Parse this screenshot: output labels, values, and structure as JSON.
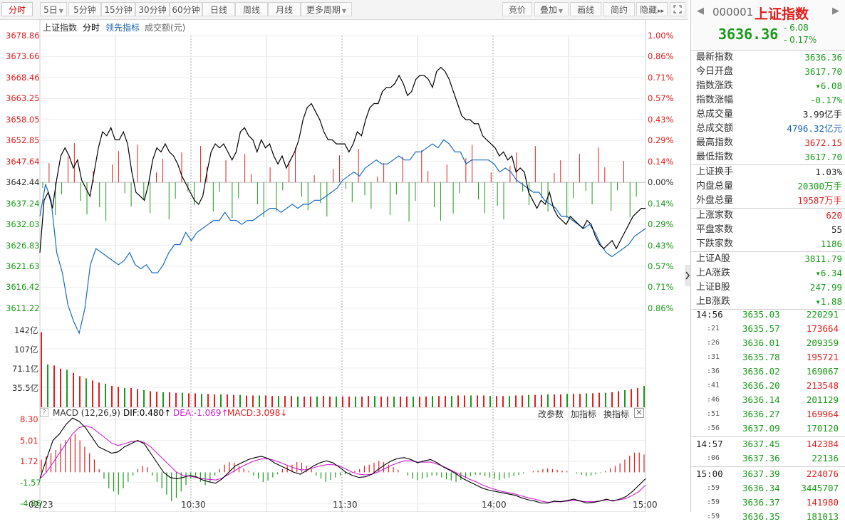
{
  "toolbar": {
    "periods": [
      "分时",
      "5日",
      "1分钟",
      "5分钟",
      "15分钟",
      "30分钟",
      "60分钟",
      "日线",
      "周线",
      "月线",
      "更多周期"
    ],
    "active": "分时",
    "right_buttons": [
      "竞价",
      "叠加",
      "画线",
      "简约",
      "隐藏"
    ],
    "arrow_label": "▸▸"
  },
  "chart": {
    "legend": {
      "index": "上证指数",
      "mode": "分时",
      "leading": "领先指标",
      "amount": "成交额(元)"
    },
    "price_axis": [
      "3678.86",
      "3673.66",
      "3668.46",
      "3663.25",
      "3658.05",
      "3652.85",
      "3647.64",
      "3642.44",
      "3637.24",
      "3632.03",
      "3626.83",
      "3621.63",
      "3616.42",
      "3611.22"
    ],
    "pct_axis": [
      "1.00%",
      "0.86%",
      "0.71%",
      "0.57%",
      "0.43%",
      "0.29%",
      "0.14%",
      "0.00%",
      "0.14%",
      "0.29%",
      "0.43%",
      "0.57%",
      "0.71%",
      "0.86%"
    ],
    "vol_axis": [
      "142亿",
      "107亿",
      "71.1亿",
      "35.5亿"
    ],
    "macd_header": {
      "title": "MACD (12,26,9)",
      "dif": "DIF:0.480↑",
      "dea": "DEA:-1.069↑",
      "macd": "MACD:3.098↓",
      "links": [
        "改参数",
        "加指标",
        "换指标"
      ]
    },
    "macd_axis": [
      "8.30",
      "5.01",
      "1.72",
      "-1.57",
      "-4.86"
    ],
    "time_axis": [
      "02/23",
      "10:30",
      "11:30",
      "14:00",
      "15:00"
    ]
  },
  "colors": {
    "up": "#e02020",
    "down": "#1a9a1a",
    "price_line": "#000000",
    "lead_line": "#1a6cc0",
    "dea": "#d020d0"
  },
  "series": {
    "price": [
      3625,
      3638,
      3640,
      3636,
      3643,
      3649,
      3651,
      3649,
      3646,
      3648,
      3643,
      3641,
      3639,
      3645,
      3651,
      3655,
      3654,
      3656,
      3653,
      3653,
      3655,
      3652,
      3645,
      3640,
      3639,
      3638,
      3642,
      3648,
      3651,
      3650,
      3652,
      3650,
      3649,
      3647,
      3644,
      3642,
      3640,
      3638,
      3637,
      3639,
      3645,
      3650,
      3652,
      3651,
      3652,
      3650,
      3648,
      3650,
      3655,
      3656,
      3654,
      3653,
      3650,
      3653,
      3651,
      3652,
      3649,
      3647,
      3649,
      3646,
      3648,
      3650,
      3653,
      3658,
      3661,
      3662,
      3660,
      3658,
      3655,
      3653,
      3653,
      3652,
      3652,
      3652,
      3650,
      3652,
      3655,
      3654,
      3658,
      3661,
      3662,
      3662,
      3665,
      3666,
      3666,
      3667,
      3669,
      3667,
      3664,
      3665,
      3668,
      3669,
      3669,
      3668,
      3666,
      3670,
      3671,
      3670,
      3668,
      3665,
      3662,
      3659,
      3658,
      3658,
      3657,
      3657,
      3654,
      3653,
      3652,
      3651,
      3649,
      3650,
      3648,
      3649,
      3645,
      3646,
      3645,
      3640,
      3638,
      3636,
      3638,
      3637,
      3640,
      3636,
      3634,
      3633,
      3632,
      3634,
      3633,
      3632,
      3631,
      3633,
      3632,
      3629,
      3627,
      3626,
      3627,
      3628,
      3626,
      3628,
      3630,
      3632,
      3634,
      3635,
      3636,
      3636
    ],
    "lead": [
      3634,
      3642,
      3638,
      3625,
      3620,
      3612,
      3608,
      3605,
      3611,
      3622,
      3626,
      3625,
      3624,
      3623,
      3622,
      3623,
      3625,
      3622,
      3621,
      3622,
      3620,
      3620,
      3622,
      3625,
      3627,
      3627,
      3630,
      3628,
      3630,
      3631,
      3632,
      3633,
      3633,
      3635,
      3633,
      3633,
      3632,
      3633,
      3633,
      3634,
      3635,
      3636,
      3636,
      3635,
      3636,
      3637,
      3636,
      3637,
      3637,
      3638,
      3638,
      3639,
      3640,
      3641,
      3643,
      3644,
      3645,
      3644,
      3646,
      3647,
      3648,
      3647,
      3647,
      3648,
      3649,
      3648,
      3648,
      3650,
      3650,
      3651,
      3652,
      3651,
      3653,
      3652,
      3650,
      3650,
      3647,
      3648,
      3648,
      3648,
      3648,
      3647,
      3645,
      3646,
      3645,
      3643,
      3642,
      3641,
      3640,
      3640,
      3638,
      3637,
      3636,
      3634,
      3634,
      3633,
      3632,
      3631,
      3632,
      3630,
      3627,
      3625,
      3624,
      3625,
      3626,
      3627,
      3629,
      3630,
      3631
    ],
    "vol": [
      140,
      80,
      78,
      72,
      70,
      64,
      58,
      54,
      50,
      46,
      44,
      40,
      38,
      36,
      36,
      34,
      32,
      30,
      29,
      28,
      28,
      27,
      27,
      26,
      26,
      25,
      25,
      24,
      24,
      24,
      23,
      23,
      22,
      22,
      22,
      22,
      21,
      21,
      21,
      21,
      20,
      20,
      20,
      20,
      21,
      20,
      20,
      20,
      20,
      20,
      20,
      21,
      21,
      20,
      20,
      20,
      20,
      20,
      20,
      20,
      20,
      21,
      21,
      21,
      21,
      22,
      22,
      22,
      22,
      22,
      21,
      21,
      21,
      21,
      22,
      22,
      23,
      23,
      23,
      24,
      24,
      24,
      25,
      25,
      25,
      26,
      26,
      27,
      27,
      28,
      30,
      32,
      34,
      36,
      40
    ],
    "macd_hist": [
      2,
      2.5,
      3,
      3.5,
      4.5,
      5,
      5.5,
      6,
      5,
      4,
      3,
      2,
      0.5,
      -1,
      -2.5,
      -3,
      -3.5,
      -2.5,
      -1.5,
      -0.5,
      0.5,
      1,
      0.8,
      -0.5,
      -1.5,
      -2.5,
      -3.5,
      -4.5,
      -4,
      -3,
      -2,
      -1,
      -0.5,
      -1.5,
      -2,
      -1.5,
      -0.5,
      0.5,
      1.2,
      1.6,
      1.5,
      1,
      0.6,
      0.2,
      -0.5,
      -1,
      -1.5,
      -1.3,
      -0.8,
      -0.3,
      0.5,
      1,
      1.2,
      1.6,
      1.5,
      1,
      0.5,
      -0.5,
      -1,
      -1.5,
      -1.2,
      -0.8,
      -0.5,
      -0.3,
      -0.2,
      0.2,
      0.5,
      1,
      1.2,
      1.5,
      1.8,
      1.6,
      1.2,
      0.8,
      0.4,
      0,
      -0.5,
      -1,
      -1.2,
      -1,
      -0.8,
      -0.5,
      -0.5,
      -0.8,
      -1.1,
      -1.3,
      -1.5,
      -1.2,
      -0.9,
      -0.6,
      -0.4,
      -0.4,
      -0.6,
      -0.8,
      -1,
      -1.2,
      -1,
      -0.8,
      -0.6,
      -0.4,
      -0.2,
      0,
      0.2,
      0.3,
      0.5,
      0.6,
      0.5,
      0.4,
      0.3,
      0.2,
      0,
      -0.2,
      -0.4,
      -0.6,
      -0.5,
      -0.3,
      -0.1,
      0.2,
      0.6,
      1,
      1.4,
      2,
      2.6,
      3.1,
      3.1,
      2.8
    ],
    "dif": [
      -1,
      2,
      5,
      6,
      7.5,
      8.5,
      8,
      7,
      5.5,
      4,
      3.5,
      3,
      3.2,
      4,
      4.5,
      5,
      4.5,
      3,
      1.5,
      0,
      -0.8,
      -1,
      -0.8,
      -0.5,
      -0.7,
      -1.2,
      -1.5,
      -1.7,
      -1,
      0,
      1,
      1.5,
      2,
      2.3,
      2.5,
      2.2,
      1.5,
      1,
      0.5,
      0,
      -0.3,
      0.3,
      1,
      1.5,
      1.8,
      1.5,
      0.8,
      0,
      -0.5,
      -0.8,
      -0.7,
      -0.3,
      0.5,
      1.2,
      1.8,
      2.2,
      2.3,
      2,
      1.5,
      1.8,
      2,
      1.5,
      0.8,
      0.3,
      -0.3,
      -1,
      -1.5,
      -2,
      -2.5,
      -2.8,
      -3,
      -3.2,
      -3.4,
      -3.6,
      -4,
      -4.3,
      -4.5,
      -4.8,
      -4.8,
      -4.5,
      -4.6,
      -4.4,
      -4.2,
      -4.5,
      -4.8,
      -4.7,
      -4.5,
      -4.2,
      -4.5,
      -4.2,
      -3.8,
      -3,
      -2,
      -1
    ],
    "dea": [
      -1,
      0,
      1.5,
      3,
      4.5,
      6,
      7,
      7.3,
      7,
      6.2,
      5.4,
      4.6,
      4.2,
      4.5,
      4.8,
      4.9,
      4.7,
      4,
      3,
      2,
      1,
      0,
      -0.5,
      -0.6,
      -0.8,
      -1,
      -1.1,
      -1.2,
      -0.9,
      -0.3,
      0.3,
      0.9,
      1.4,
      1.8,
      2.1,
      2.1,
      1.9,
      1.5,
      1.1,
      0.7,
      0.4,
      0.4,
      0.7,
      1,
      1.2,
      1.2,
      1,
      0.5,
      0,
      -0.3,
      -0.4,
      -0.3,
      0.1,
      0.6,
      1.1,
      1.5,
      1.8,
      1.8,
      1.6,
      1.6,
      1.6,
      1.3,
      0.9,
      0.4,
      -0.1,
      -0.6,
      -1.1,
      -1.5,
      -2,
      -2.4,
      -2.7,
      -3,
      -3.2,
      -3.4,
      -3.7,
      -4,
      -4.2,
      -4.5,
      -4.7,
      -4.6,
      -4.6,
      -4.5,
      -4.4,
      -4.5,
      -4.6,
      -4.6,
      -4.5,
      -4.3,
      -4.4,
      -4.3,
      -4.1,
      -3.6,
      -3,
      -2
    ]
  },
  "panel": {
    "code": "000001",
    "name": "上证指数",
    "price": "3636.36",
    "change": "- 6.08",
    "change_pct": "- 0.17%",
    "stats": [
      {
        "k": "最新指数",
        "v": "3636.36",
        "c": "green"
      },
      {
        "k": "今日开盘",
        "v": "3617.70",
        "c": "green"
      },
      {
        "k": "指数涨跌",
        "v": "▾6.08",
        "c": "green"
      },
      {
        "k": "指数涨幅",
        "v": "-0.17%",
        "c": "green"
      },
      {
        "k": "总成交量",
        "v": "3.99亿手",
        "c": "dark"
      },
      {
        "k": "总成交额",
        "v": "4796.32亿元",
        "c": "blue"
      },
      {
        "k": "最高指数",
        "v": "3672.15",
        "c": "red"
      },
      {
        "k": "最低指数",
        "v": "3617.70",
        "c": "green"
      }
    ],
    "stats2": [
      {
        "k": "上证换手",
        "v": "1.03%",
        "c": "dark"
      },
      {
        "k": "内盘总量",
        "v": "20300万手",
        "c": "green"
      },
      {
        "k": "外盘总量",
        "v": "19587万手",
        "c": "red"
      }
    ],
    "stats3": [
      {
        "k": "上涨家数",
        "v": "620",
        "c": "red"
      },
      {
        "k": "平盘家数",
        "v": "55",
        "c": "dark"
      },
      {
        "k": "下跌家数",
        "v": "1186",
        "c": "green"
      }
    ],
    "stats4": [
      {
        "k": "上证A股",
        "v": "3811.79",
        "c": "green"
      },
      {
        "k": "上A涨跌",
        "v": "▾6.34",
        "c": "green"
      },
      {
        "k": "上证B股",
        "v": "247.99",
        "c": "green"
      },
      {
        "k": "上B涨跌",
        "v": "▾1.88",
        "c": "green"
      }
    ],
    "ticks": [
      {
        "t": "14:56",
        "p": "3635.03",
        "v": "220291",
        "big": true
      },
      {
        "t": ":21",
        "p": "3635.57",
        "v": "173664"
      },
      {
        "t": ":26",
        "p": "3636.01",
        "v": "209359"
      },
      {
        "t": ":31",
        "p": "3635.78",
        "v": "195721"
      },
      {
        "t": ":36",
        "p": "3636.02",
        "v": "169067"
      },
      {
        "t": ":41",
        "p": "3636.20",
        "v": "213548"
      },
      {
        "t": ":46",
        "p": "3636.14",
        "v": "201129"
      },
      {
        "t": ":51",
        "p": "3636.27",
        "v": "169964"
      },
      {
        "t": ":56",
        "p": "3637.09",
        "v": "170120"
      },
      {
        "t": "14:57",
        "p": "3637.45",
        "v": "142384",
        "big": true
      },
      {
        "t": ":06",
        "p": "3637.36",
        "v": "22136"
      },
      {
        "t": "15:00",
        "p": "3637.39",
        "v": "224076",
        "big": true
      },
      {
        "t": ":59",
        "p": "3636.34",
        "v": "3445707"
      },
      {
        "t": ":59",
        "p": "3636.37",
        "v": "141980"
      },
      {
        "t": ":59",
        "p": "3636.35",
        "v": "181013"
      }
    ]
  }
}
